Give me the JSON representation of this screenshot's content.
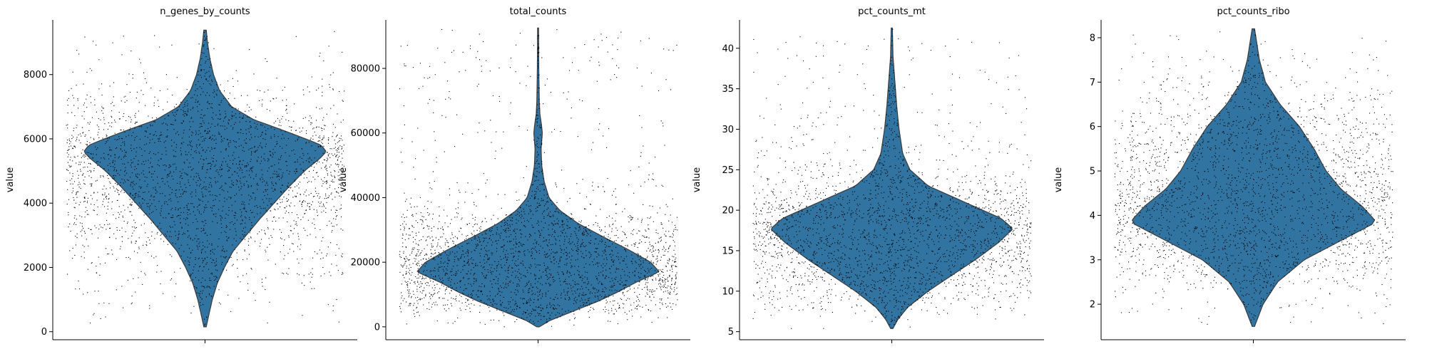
{
  "chart_data": [
    {
      "type": "violin",
      "title": "n_genes_by_counts",
      "ylabel": "value",
      "ylim": [
        -250,
        9700
      ],
      "yticks": [
        0,
        2000,
        4000,
        6000,
        8000
      ],
      "ytick_labels": [
        "0",
        "2000",
        "4000",
        "6000",
        "8000"
      ],
      "color": "#3274a1",
      "point_color": "#000000",
      "violin_min": 150,
      "violin_max": 9380,
      "profile": [
        [
          150,
          0.01
        ],
        [
          500,
          0.03
        ],
        [
          1000,
          0.06
        ],
        [
          1500,
          0.1
        ],
        [
          2000,
          0.16
        ],
        [
          2500,
          0.23
        ],
        [
          3000,
          0.34
        ],
        [
          3500,
          0.45
        ],
        [
          4000,
          0.57
        ],
        [
          4500,
          0.69
        ],
        [
          5000,
          0.82
        ],
        [
          5400,
          0.95
        ],
        [
          5600,
          1.0
        ],
        [
          5800,
          0.96
        ],
        [
          6000,
          0.83
        ],
        [
          6300,
          0.62
        ],
        [
          6600,
          0.4
        ],
        [
          7000,
          0.22
        ],
        [
          7500,
          0.12
        ],
        [
          8000,
          0.07
        ],
        [
          8500,
          0.04
        ],
        [
          9000,
          0.02
        ],
        [
          9380,
          0.01
        ]
      ]
    },
    {
      "type": "violin",
      "title": "total_counts",
      "ylabel": "value",
      "ylim": [
        -4000,
        95000
      ],
      "yticks": [
        0,
        20000,
        40000,
        60000,
        80000
      ],
      "ytick_labels": [
        "0",
        "20000",
        "40000",
        "60000",
        "80000"
      ],
      "color": "#3274a1",
      "point_color": "#000000",
      "violin_min": 0,
      "violin_max": 92500,
      "profile": [
        [
          0,
          0.01
        ],
        [
          2000,
          0.1
        ],
        [
          5000,
          0.3
        ],
        [
          8000,
          0.5
        ],
        [
          11000,
          0.67
        ],
        [
          14000,
          0.82
        ],
        [
          17000,
          1.0
        ],
        [
          20000,
          0.93
        ],
        [
          24000,
          0.74
        ],
        [
          28000,
          0.53
        ],
        [
          32000,
          0.33
        ],
        [
          36000,
          0.18
        ],
        [
          40000,
          0.09
        ],
        [
          45000,
          0.05
        ],
        [
          50000,
          0.03
        ],
        [
          55000,
          0.025
        ],
        [
          60000,
          0.035
        ],
        [
          62000,
          0.03
        ],
        [
          66000,
          0.015
        ],
        [
          70000,
          0.01
        ],
        [
          80000,
          0.006
        ],
        [
          92500,
          0.004
        ]
      ]
    },
    {
      "type": "violin",
      "title": "pct_counts_mt",
      "ylabel": "value",
      "ylim": [
        4,
        43.5
      ],
      "yticks": [
        5,
        10,
        15,
        20,
        25,
        30,
        35,
        40
      ],
      "ytick_labels": [
        "5",
        "10",
        "15",
        "20",
        "25",
        "30",
        "35",
        "40"
      ],
      "color": "#3274a1",
      "point_color": "#000000",
      "violin_min": 5.4,
      "violin_max": 42.5,
      "profile": [
        [
          5.4,
          0.01
        ],
        [
          6.5,
          0.05
        ],
        [
          8,
          0.13
        ],
        [
          10,
          0.3
        ],
        [
          12,
          0.5
        ],
        [
          14,
          0.7
        ],
        [
          16,
          0.88
        ],
        [
          17.7,
          1.0
        ],
        [
          19,
          0.9
        ],
        [
          21,
          0.6
        ],
        [
          23,
          0.3
        ],
        [
          25,
          0.15
        ],
        [
          27,
          0.09
        ],
        [
          30,
          0.06
        ],
        [
          33,
          0.04
        ],
        [
          35,
          0.03
        ],
        [
          37,
          0.02
        ],
        [
          39,
          0.01
        ],
        [
          42.5,
          0.005
        ]
      ]
    },
    {
      "type": "violin",
      "title": "pct_counts_ribo",
      "ylabel": "value",
      "ylim": [
        1.2,
        8.4
      ],
      "yticks": [
        2,
        3,
        4,
        5,
        6,
        7,
        8
      ],
      "ytick_labels": [
        "2",
        "3",
        "4",
        "5",
        "6",
        "7",
        "8"
      ],
      "color": "#3274a1",
      "point_color": "#000000",
      "violin_min": 1.5,
      "violin_max": 8.2,
      "profile": [
        [
          1.5,
          0.01
        ],
        [
          2,
          0.08
        ],
        [
          2.5,
          0.2
        ],
        [
          3,
          0.42
        ],
        [
          3.4,
          0.7
        ],
        [
          3.8,
          0.98
        ],
        [
          3.9,
          1.0
        ],
        [
          4.2,
          0.9
        ],
        [
          4.6,
          0.72
        ],
        [
          5,
          0.6
        ],
        [
          5.5,
          0.5
        ],
        [
          6,
          0.38
        ],
        [
          6.5,
          0.22
        ],
        [
          7,
          0.1
        ],
        [
          7.5,
          0.05
        ],
        [
          8.2,
          0.01
        ]
      ]
    }
  ]
}
